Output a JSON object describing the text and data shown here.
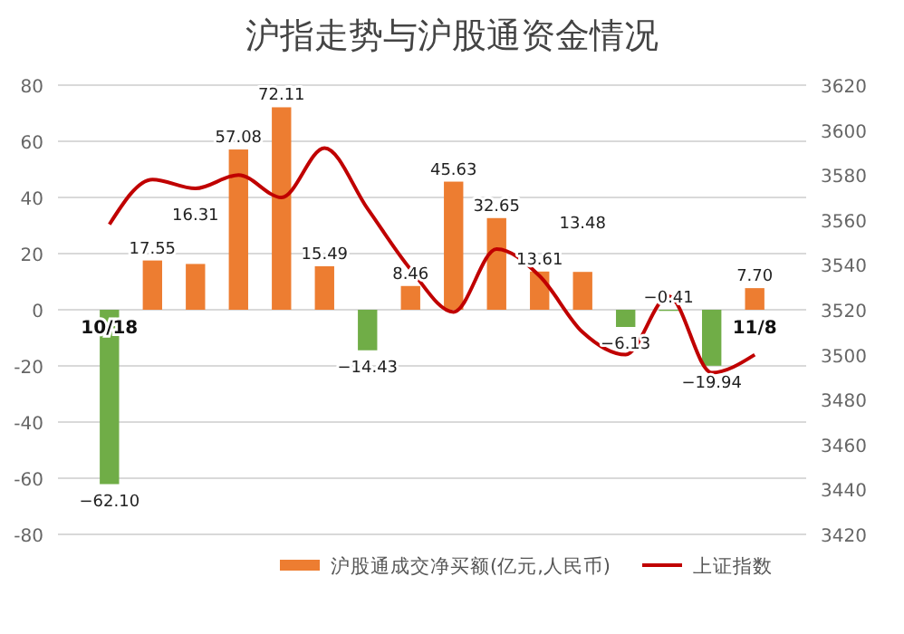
{
  "chart_data": {
    "type": "bar",
    "title": "沪指走势与沪股通资金情况",
    "categories": [
      "10/18",
      null,
      null,
      null,
      null,
      null,
      null,
      null,
      null,
      null,
      null,
      null,
      null,
      null,
      null,
      "11/8"
    ],
    "series": [
      {
        "name": "沪股通成交净买额(亿元,人民币)",
        "color": "#ed7d31",
        "colors": [
          "#70ad47",
          "#ed7d31",
          "#ed7d31",
          "#ed7d31",
          "#ed7d31",
          "#ed7d31",
          "#70ad47",
          "#ed7d31",
          "#ed7d31",
          "#ed7d31",
          "#ed7d31",
          "#ed7d31",
          "#70ad47",
          "#70ad47",
          "#70ad47",
          "#ed7d31"
        ],
        "values": [
          -62.1,
          17.55,
          16.31,
          57.08,
          72.11,
          15.49,
          -14.43,
          8.46,
          45.63,
          32.65,
          13.61,
          13.48,
          -6.13,
          -0.41,
          -19.94,
          7.7
        ],
        "value_labels": [
          "−62.10",
          "17.55",
          "16.31",
          "57.08",
          "72.11",
          "15.49",
          "−14.43",
          "8.46",
          "45.63",
          "32.65",
          "13.61",
          "13.48",
          "−6.13",
          "−0.41",
          "−19.94",
          "7.70"
        ]
      },
      {
        "name": "上证指数",
        "type": "line",
        "axis": "y2",
        "color": "#c00000",
        "values": [
          3558,
          3578,
          3574,
          3580,
          3570,
          3592,
          3565,
          3538,
          3519,
          3547,
          3535,
          3510,
          3500,
          3526,
          3492,
          3500
        ]
      }
    ],
    "ylim": [
      -80,
      80
    ],
    "yticks": [
      -80,
      -60,
      -40,
      -20,
      0,
      20,
      40,
      60,
      80
    ],
    "y2lim": [
      3420,
      3620
    ],
    "y2ticks": [
      3420,
      3440,
      3460,
      3480,
      3500,
      3520,
      3540,
      3560,
      3580,
      3600,
      3620
    ],
    "grid": "y",
    "legend": "bottom",
    "marker": "none",
    "line_style": "solid"
  }
}
